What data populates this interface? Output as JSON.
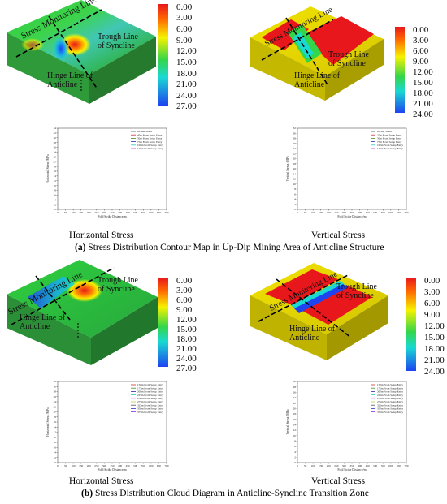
{
  "figure": {
    "legend_left_a": [
      "0.00",
      "3.00",
      "6.00",
      "9.00",
      "12.00",
      "15.00",
      "18.00",
      "21.00",
      "24.00",
      "27.00"
    ],
    "legend_right_a": [
      "0.00",
      "3.00",
      "6.00",
      "9.00",
      "12.00",
      "15.00",
      "18.00",
      "21.00",
      "24.00"
    ],
    "legend_left_b": [
      "0.00",
      "3.00",
      "6.00",
      "9.00",
      "12.00",
      "15.00",
      "18.00",
      "21.00",
      "24.00",
      "27.00"
    ],
    "legend_right_b": [
      "0.00",
      "3.00",
      "6.00",
      "9.00",
      "12.00",
      "15.00",
      "18.00",
      "21.00",
      "24.00"
    ],
    "map_labels": {
      "stress_line": "Stress Monitoring Line",
      "trough": "Trough Line of Syncline",
      "hinge": "Hinge Line of Anticline"
    },
    "horizontal_label": "Horizontal Stress",
    "vertical_label": "Vertical Stress",
    "caption_a_prefix": "(a)",
    "caption_a_text": " Stress Distribution Contour Map in Up-Dip Mining Area of Anticline Structure",
    "caption_b_prefix": "(b)",
    "caption_b_text": " Stress Distribution Cloud Diagram in Anticline-Syncline Transition Zone",
    "colors": {
      "red": "#e8171c",
      "orange": "#ff8a00",
      "yellow": "#f6f200",
      "green": "#34d649",
      "cyan": "#19d9d2",
      "blue": "#1d44f0"
    }
  },
  "chart_data": [
    {
      "type": "line",
      "xlabel": "Fold Strike Distance/m",
      "ylabel": "Horizontal Stress /MPa",
      "xlim": [
        0,
        700
      ],
      "ylim": [
        0,
        34
      ],
      "xticks": [
        0,
        50,
        100,
        150,
        200,
        250,
        300,
        350,
        400,
        450,
        500,
        550,
        600,
        650,
        700
      ],
      "yticks": [
        0,
        2,
        4,
        6,
        8,
        10,
        12,
        14,
        16,
        18,
        20,
        22,
        24,
        26,
        28,
        30,
        32,
        34
      ],
      "series": [
        {
          "name": "In-Situ Stress",
          "color": "#555555"
        },
        {
          "name": "45m From Setup Entry",
          "color": "#d1302f"
        },
        {
          "name": "50m From Setup Entry",
          "color": "#3a8e3a"
        },
        {
          "name": "75m From Setup Entry",
          "color": "#2a2aa8"
        },
        {
          "name": "100m From Setup Entry",
          "color": "#29c7c7"
        },
        {
          "name": "125m From Setup Entry",
          "color": "#c93fc9"
        }
      ]
    },
    {
      "type": "line",
      "xlabel": "Fold Strike Distance/m",
      "ylabel": "Vertical Stress /MPa",
      "xlim": [
        0,
        700
      ],
      "ylim": [
        0,
        32
      ],
      "xticks": [
        0,
        50,
        100,
        150,
        200,
        250,
        300,
        350,
        400,
        450,
        500,
        550,
        600,
        650,
        700
      ],
      "yticks": [
        0,
        2,
        4,
        6,
        8,
        10,
        12,
        14,
        16,
        18,
        20,
        22,
        24,
        26,
        28,
        30,
        32
      ],
      "series": [
        {
          "name": "In-Situ Stress",
          "color": "#555555"
        },
        {
          "name": "25m From Setup Entry",
          "color": "#d1302f"
        },
        {
          "name": "50m From Setup Entry",
          "color": "#3a8e3a"
        },
        {
          "name": "75m From Setup Entry",
          "color": "#2a2aa8"
        },
        {
          "name": "100m From Setup Entry",
          "color": "#29c7c7"
        },
        {
          "name": "125m From Setup Entry",
          "color": "#c93fc9"
        }
      ]
    },
    {
      "type": "line",
      "xlabel": "Fold Strike Distance/m",
      "ylabel": "Horizontal Stress /MPa",
      "xlim": [
        0,
        700
      ],
      "ylim": [
        0,
        32
      ],
      "xticks": [
        0,
        50,
        100,
        150,
        200,
        250,
        300,
        350,
        400,
        450,
        500,
        550,
        600,
        650,
        700
      ],
      "yticks": [
        0,
        2,
        4,
        6,
        8,
        10,
        12,
        14,
        16,
        18,
        20,
        22,
        24,
        26,
        28,
        30,
        32
      ],
      "series": [
        {
          "name": "150m From Setup Entry",
          "color": "#d1302f"
        },
        {
          "name": "175m From Setup Entry",
          "color": "#3a8e3a"
        },
        {
          "name": "200m From Setup Entry",
          "color": "#2a2aa8"
        },
        {
          "name": "225m From Setup Entry",
          "color": "#29c7c7"
        },
        {
          "name": "250m From Setup Entry",
          "color": "#c93fc9"
        },
        {
          "name": "275m From Setup Entry",
          "color": "#c9c93f"
        },
        {
          "name": "325m From Setup Entry",
          "color": "#555555"
        },
        {
          "name": "350m From Setup Entry",
          "color": "#2f2fd1"
        },
        {
          "name": "375m From Setup Entry",
          "color": "#8a2be2"
        }
      ]
    },
    {
      "type": "line",
      "xlabel": "Fold Strike Distance/m",
      "ylabel": "Vertical Stress /MPa",
      "xlim": [
        0,
        700
      ],
      "ylim": [
        0,
        30
      ],
      "xticks": [
        0,
        50,
        100,
        150,
        200,
        250,
        300,
        350,
        400,
        450,
        500,
        550,
        600,
        650,
        700
      ],
      "yticks": [
        0,
        2,
        4,
        6,
        8,
        10,
        12,
        14,
        16,
        18,
        20,
        22,
        24,
        26,
        28,
        30
      ],
      "series": [
        {
          "name": "150m From Setup Entry",
          "color": "#d1302f"
        },
        {
          "name": "175m From Setup Entry",
          "color": "#3a8e3a"
        },
        {
          "name": "200m From Setup Entry",
          "color": "#2a2aa8"
        },
        {
          "name": "225m From Setup Entry",
          "color": "#29c7c7"
        },
        {
          "name": "250m From Setup Entry",
          "color": "#c93fc9"
        },
        {
          "name": "275m From Setup Entry",
          "color": "#c9c93f"
        },
        {
          "name": "325m From Setup Entry",
          "color": "#555555"
        },
        {
          "name": "350m From Setup Entry",
          "color": "#2f2fd1"
        },
        {
          "name": "375m From Setup Entry",
          "color": "#8a2be2"
        }
      ]
    }
  ]
}
